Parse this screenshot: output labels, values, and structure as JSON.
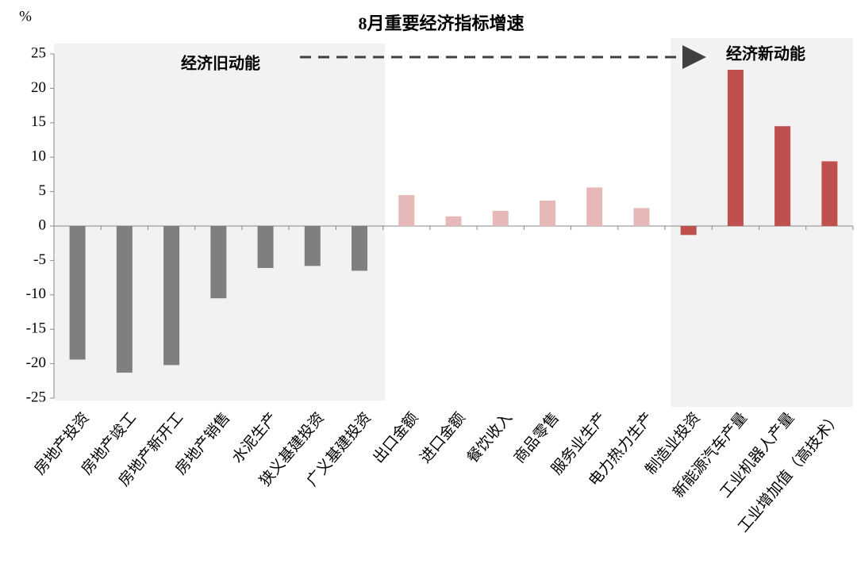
{
  "chart_data": {
    "type": "bar",
    "title": "8月重要经济指标增速",
    "y_label": "%",
    "annotations": [
      "经济旧动能",
      "经济新动能"
    ],
    "categories": [
      "房地产投资",
      "房地产竣工",
      "房地产新开工",
      "房地产销售",
      "水泥生产",
      "狭义基建投资",
      "广义基建投资",
      "出口金额",
      "进口金额",
      "餐饮收入",
      "商品零售",
      "服务业生产",
      "电力热力生产",
      "制造业投资",
      "新能源汽车产量",
      "工业机器人产量",
      "工业增加值（高技术）"
    ],
    "values": [
      -19.4,
      -21.3,
      -20.2,
      -10.5,
      -6.1,
      -5.8,
      -6.5,
      4.5,
      1.4,
      2.2,
      3.7,
      5.6,
      2.6,
      -1.3,
      22.7,
      14.5,
      9.4
    ],
    "colors": [
      "#7f7f7f",
      "#7f7f7f",
      "#7f7f7f",
      "#7f7f7f",
      "#7f7f7f",
      "#7f7f7f",
      "#7f7f7f",
      "#e6b9b8",
      "#e6b9b8",
      "#e6b9b8",
      "#e6b9b8",
      "#e6b9b8",
      "#e6b9b8",
      "#c0504d",
      "#c0504d",
      "#c0504d",
      "#c0504d"
    ],
    "ylim": [
      -25,
      25
    ],
    "yticks": [
      -25,
      -20,
      -15,
      -10,
      -5,
      0,
      5,
      10,
      15,
      20,
      25
    ],
    "grid": false
  }
}
